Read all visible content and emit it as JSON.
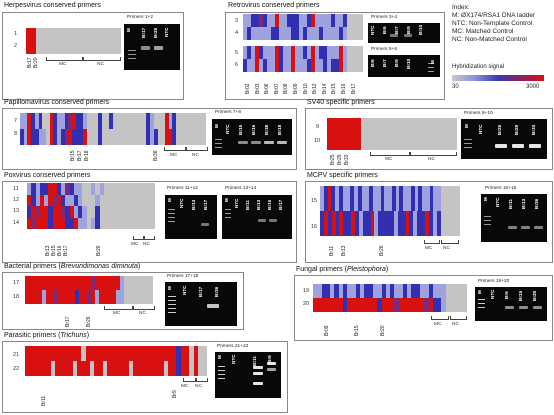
{
  "legend": {
    "title": "Index:",
    "items": [
      "M: ØX174/RSA1 DNA ladder",
      "NTC: Non-Template Control",
      "MC: Matched Control",
      "NC: Non-Matched Control"
    ],
    "signal_label": "Hybridization signal",
    "scale_min": "30",
    "scale_max": "3000"
  },
  "panels": {
    "herpes": {
      "title": "Herpesvirus conserved primers",
      "rows": [
        "1",
        "2"
      ],
      "lanes": [
        "Br17",
        "Br20"
      ],
      "mc": "MC",
      "nc": "NC",
      "gel_header": "Primers 1+2",
      "gel_lanes": [
        "M",
        "Br17",
        "Br25",
        "NTC"
      ]
    },
    "retro": {
      "title": "Retrovirus conserved primers",
      "rows_a": [
        "3",
        "4"
      ],
      "rows_b": [
        "5",
        "6"
      ],
      "lanes": [
        "Br02",
        "Br03",
        "Br06",
        "Br07",
        "Br08",
        "Br09",
        "Br10",
        "Br12",
        "Br14",
        "Br15",
        "Br16",
        "Br17"
      ],
      "gel_a_header": "Primers 3+4",
      "gel_a_lanes": [
        "NTC",
        "Br6",
        "Br7",
        "Br9",
        "Br10"
      ],
      "gel_b_header": "Primers 5+6",
      "gel_b_lanes": [
        "Br6",
        "Br7",
        "Br9",
        "Br10",
        "M"
      ]
    },
    "papilloma": {
      "title": "Papillomavirus conserved primers",
      "rows": [
        "7",
        "8"
      ],
      "lanes": [
        "Br15",
        "Br17",
        "Br18",
        "Br38"
      ],
      "mc": "MC",
      "nc": "NC",
      "gel_header": "Primers 7+8",
      "gel_lanes": [
        "M",
        "NTC",
        "Br15",
        "Br16",
        "Br38",
        "Br18"
      ]
    },
    "sv40": {
      "title": "SV40 specific primers",
      "rows": [
        "9",
        "10"
      ],
      "lanes": [
        "Br25",
        "Br29",
        "Br33"
      ],
      "mc": "MC",
      "nc": "NC",
      "gel_header": "Primers 9+10",
      "gel_lanes": [
        "M",
        "NTC",
        "Br25",
        "Br29",
        "Br33"
      ]
    },
    "polyoma": {
      "title": "Poxvirus conserved primers",
      "rows": [
        "11",
        "12",
        "13",
        "14"
      ],
      "lanes": [
        "Br13",
        "Br15",
        "Br16",
        "Br17",
        "Br26"
      ],
      "mc": "MC",
      "nc": "NC",
      "gel_a_header": "Primers 11+12",
      "gel_a_lanes": [
        "M",
        "NTC",
        "Br13",
        "Br17"
      ],
      "gel_b_header": "Primers 13+14",
      "gel_b_lanes": [
        "M",
        "NTC",
        "Br11",
        "Br13",
        "Br15",
        "Br17"
      ]
    },
    "mcpv": {
      "title": "MCPV specific primers",
      "rows": [
        "15",
        "16"
      ],
      "lanes": [
        "Br11",
        "Br13",
        "Br26"
      ],
      "mc": "MC",
      "nc": "NC",
      "gel_header": "Primers 15+16",
      "gel_lanes": [
        "M",
        "NTC",
        "Br11",
        "Br13",
        "Br26"
      ]
    },
    "bacterial": {
      "title_a": "Bacterial primers (",
      "title_b": "Brevundimonas diminuta",
      "title_c": ")",
      "rows": [
        "17",
        "18"
      ],
      "lanes": [
        "Br17",
        "Br26"
      ],
      "mc": "MC",
      "nc": "NC",
      "gel_header": "Primers 17+18",
      "gel_lanes": [
        "M",
        "NTC",
        "Br17",
        "Br26"
      ]
    },
    "fungal": {
      "title_a": "Fungal primers (",
      "title_b": "Pleistophora",
      "title_c": ")",
      "rows": [
        "19",
        "20"
      ],
      "lanes": [
        "Br09",
        "Br15",
        "Br20"
      ],
      "mc": "MC",
      "nc": "NC",
      "gel_header": "Primers 19+20",
      "gel_lanes": [
        "M",
        "NTC",
        "Br9",
        "Br15",
        "Br20"
      ]
    },
    "parasitic": {
      "title_a": "Parasitic primers (",
      "title_b": "Trichuris",
      "title_c": ")",
      "rows": [
        "21",
        "22"
      ],
      "lanes": [
        "Br11",
        "Br9"
      ],
      "mc": "MC",
      "nc": "NC",
      "gel_header": "Primers 21+22",
      "gel_lanes": [
        "M",
        "NTC",
        "Br11",
        "Br9"
      ]
    }
  },
  "colors": {
    "red": "#d81010",
    "blue": "#3030b0",
    "light_blue": "#9ea2de",
    "purple": "#7a2a78",
    "grey": "#c4c4c4",
    "white": "#ffffff"
  }
}
